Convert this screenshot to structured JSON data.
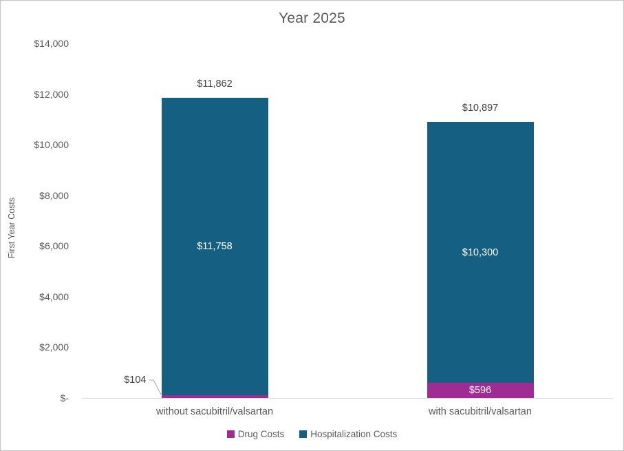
{
  "chart_data": {
    "type": "bar",
    "stacked": true,
    "title": "Year 2025",
    "xlabel": "",
    "ylabel": "First Year Costs",
    "categories": [
      "without sacubitril/valsartan",
      "with sacubitril/valsartan"
    ],
    "series": [
      {
        "name": "Drug Costs",
        "color": "#A02B93",
        "values": [
          104,
          596
        ],
        "labels": [
          "$104",
          "$596"
        ],
        "label_styles": [
          "callout-left",
          "inside"
        ]
      },
      {
        "name": "Hospitalization Costs",
        "color": "#156082",
        "values": [
          11758,
          10300
        ],
        "labels": [
          "$11,758",
          "$10,300"
        ],
        "label_styles": [
          "inside",
          "inside"
        ]
      }
    ],
    "totals": [
      11862,
      10897
    ],
    "total_labels": [
      "$11,862",
      "$10,897"
    ],
    "ylim": [
      0,
      14000
    ],
    "ytick_step": 2000,
    "yticks": [
      {
        "value": 0,
        "label": "$-"
      },
      {
        "value": 2000,
        "label": "$2,000"
      },
      {
        "value": 4000,
        "label": "$4,000"
      },
      {
        "value": 6000,
        "label": "$6,000"
      },
      {
        "value": 8000,
        "label": "$8,000"
      },
      {
        "value": 10000,
        "label": "$10,000"
      },
      {
        "value": 12000,
        "label": "$12,000"
      },
      {
        "value": 14000,
        "label": "$14,000"
      }
    ],
    "grid": false,
    "legend_position": "bottom"
  },
  "colors": {
    "hospitalization": "#156082",
    "drug": "#A02B93",
    "axis_line": "#D9D9D9",
    "text_gray": "#595959",
    "data_label_dark": "#404040",
    "leader_line": "#A6A6A6",
    "frame_border": "#C6C6C6",
    "background": "#FFFFFF"
  }
}
